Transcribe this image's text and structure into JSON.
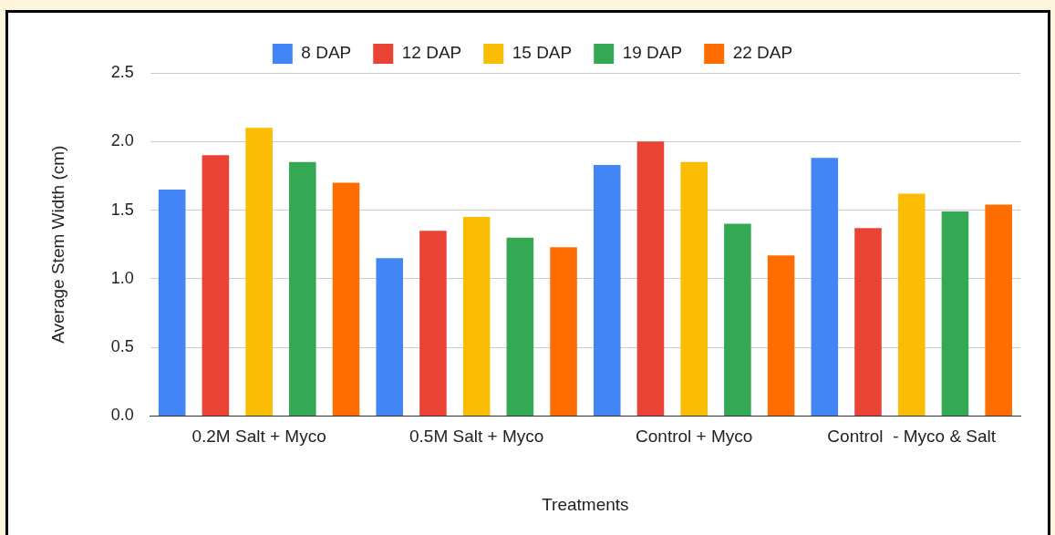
{
  "chart_data": {
    "type": "bar",
    "xlabel": "Treatments",
    "ylabel": "Average Stem Width (cm)",
    "categories": [
      "0.2M Salt + Myco",
      "0.5M Salt + Myco",
      "Control + Myco",
      "Control  - Myco & Salt"
    ],
    "series": [
      {
        "name": "8 DAP",
        "color": "#4285f4",
        "values": [
          1.65,
          1.15,
          1.83,
          1.88
        ]
      },
      {
        "name": "12 DAP",
        "color": "#ea4335",
        "values": [
          1.9,
          1.35,
          2.0,
          1.37
        ]
      },
      {
        "name": "15 DAP",
        "color": "#fbbc04",
        "values": [
          2.1,
          1.45,
          1.85,
          1.62
        ]
      },
      {
        "name": "19 DAP",
        "color": "#34a853",
        "values": [
          1.85,
          1.3,
          1.4,
          1.49
        ]
      },
      {
        "name": "22 DAP",
        "color": "#ff6d01",
        "values": [
          1.7,
          1.23,
          1.17,
          1.54
        ]
      }
    ],
    "ylim": [
      0,
      2.5
    ],
    "yticks": [
      {
        "value": 0,
        "label": "0.0"
      },
      {
        "value": 0.5,
        "label": "0.5"
      },
      {
        "value": 1,
        "label": "1.0"
      },
      {
        "value": 1.5,
        "label": "1.5"
      },
      {
        "value": 2,
        "label": "2.0"
      },
      {
        "value": 2.5,
        "label": "2.5"
      }
    ],
    "grid": "y",
    "legend": "top"
  }
}
